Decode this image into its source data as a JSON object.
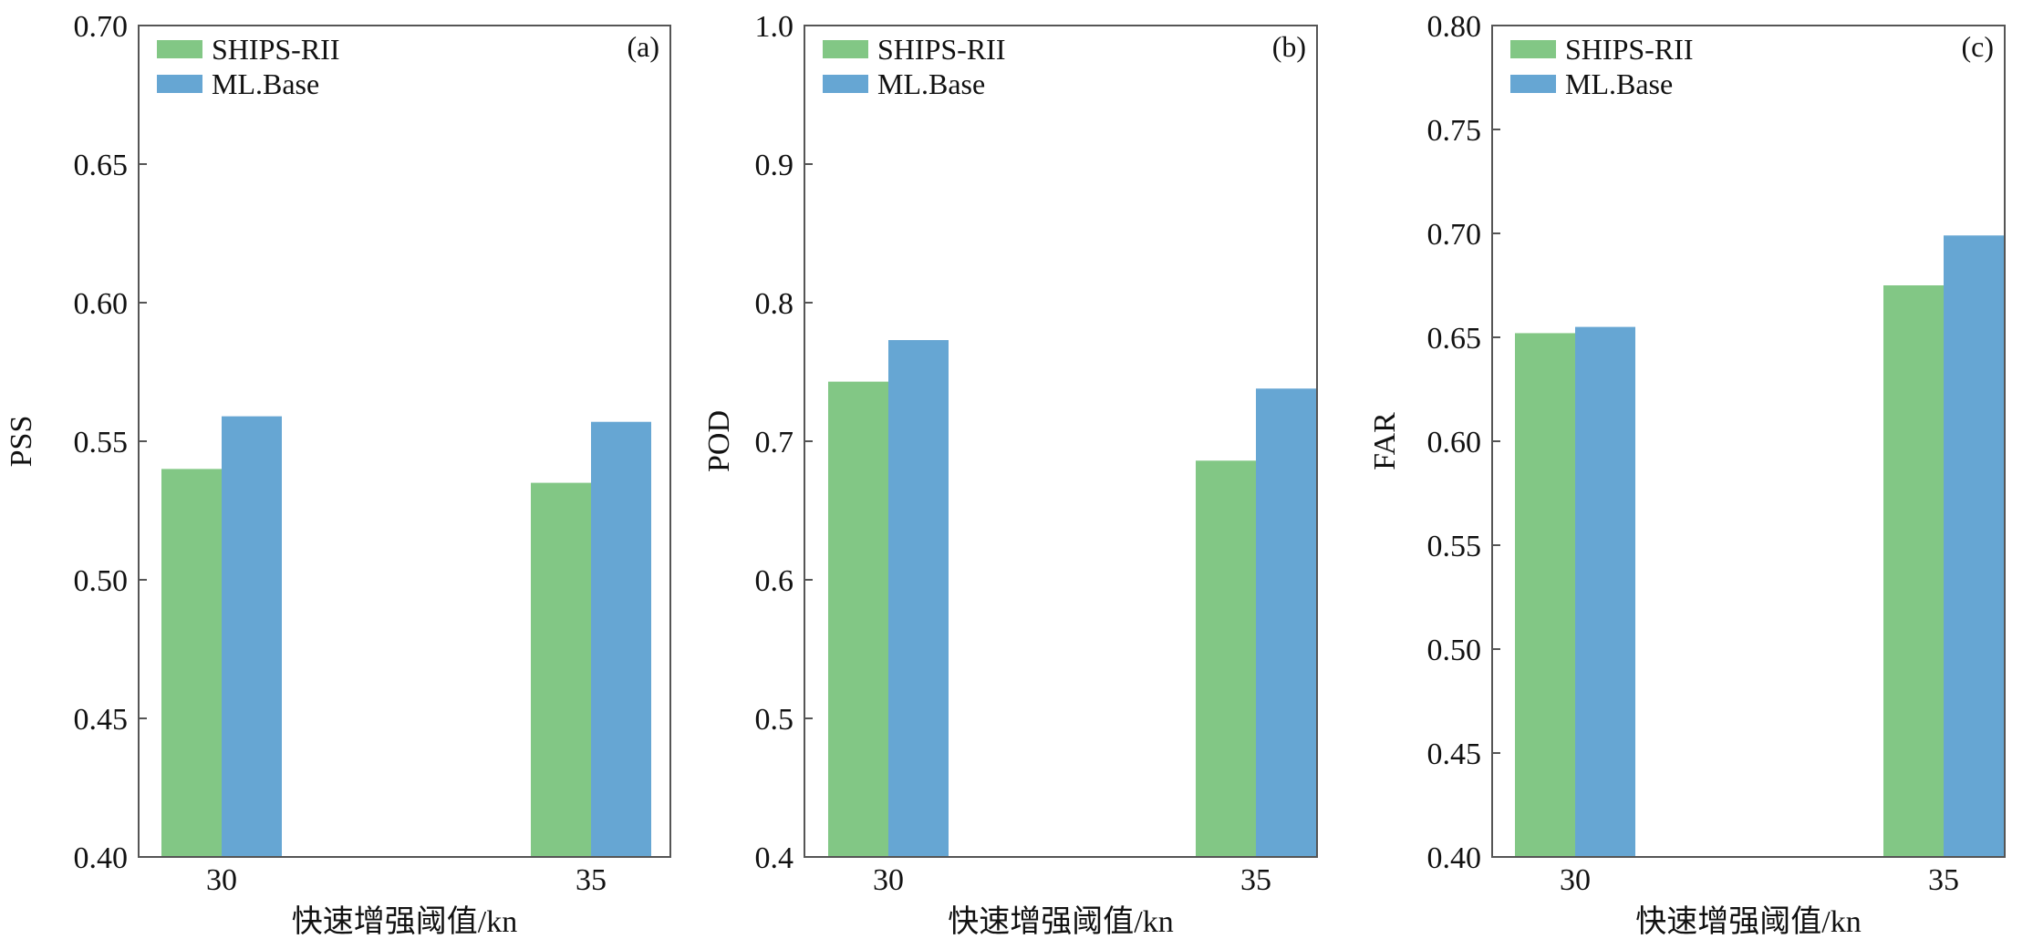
{
  "colors": {
    "series_1": "#82c785",
    "series_2": "#66a6d3",
    "axis": "#555555",
    "text": "#111111"
  },
  "chart_data": [
    {
      "type": "bar",
      "panel_label": "(a)",
      "categories": [
        "30",
        "35"
      ],
      "series": [
        {
          "name": "SHIPS-RII",
          "values": [
            0.54,
            0.535
          ]
        },
        {
          "name": "ML.Base",
          "values": [
            0.559,
            0.557
          ]
        }
      ],
      "xlabel": "快速增强阈值/kn",
      "ylabel": "PSS",
      "ylim": [
        0.4,
        0.7
      ],
      "yticks": [
        0.4,
        0.45,
        0.5,
        0.55,
        0.6,
        0.65,
        0.7
      ],
      "ytick_decimals": 2,
      "legend_position": "top-left",
      "grid": false
    },
    {
      "type": "bar",
      "panel_label": "(b)",
      "categories": [
        "30",
        "35"
      ],
      "series": [
        {
          "name": "SHIPS-RII",
          "values": [
            0.743,
            0.686
          ]
        },
        {
          "name": "ML.Base",
          "values": [
            0.773,
            0.738
          ]
        }
      ],
      "xlabel": "快速增强阈值/kn",
      "ylabel": "POD",
      "ylim": [
        0.4,
        1.0
      ],
      "yticks": [
        0.4,
        0.5,
        0.6,
        0.7,
        0.8,
        0.9,
        1.0
      ],
      "ytick_decimals": 1,
      "legend_position": "top-left",
      "grid": false
    },
    {
      "type": "bar",
      "panel_label": "(c)",
      "categories": [
        "30",
        "35"
      ],
      "series": [
        {
          "name": "SHIPS-RII",
          "values": [
            0.652,
            0.675
          ]
        },
        {
          "name": "ML.Base",
          "values": [
            0.655,
            0.699
          ]
        }
      ],
      "xlabel": "快速增强阈值/kn",
      "ylabel": "FAR",
      "ylim": [
        0.4,
        0.8
      ],
      "yticks": [
        0.4,
        0.45,
        0.5,
        0.55,
        0.6,
        0.65,
        0.7,
        0.75,
        0.8
      ],
      "ytick_decimals": 2,
      "legend_position": "top-left",
      "grid": false
    }
  ]
}
